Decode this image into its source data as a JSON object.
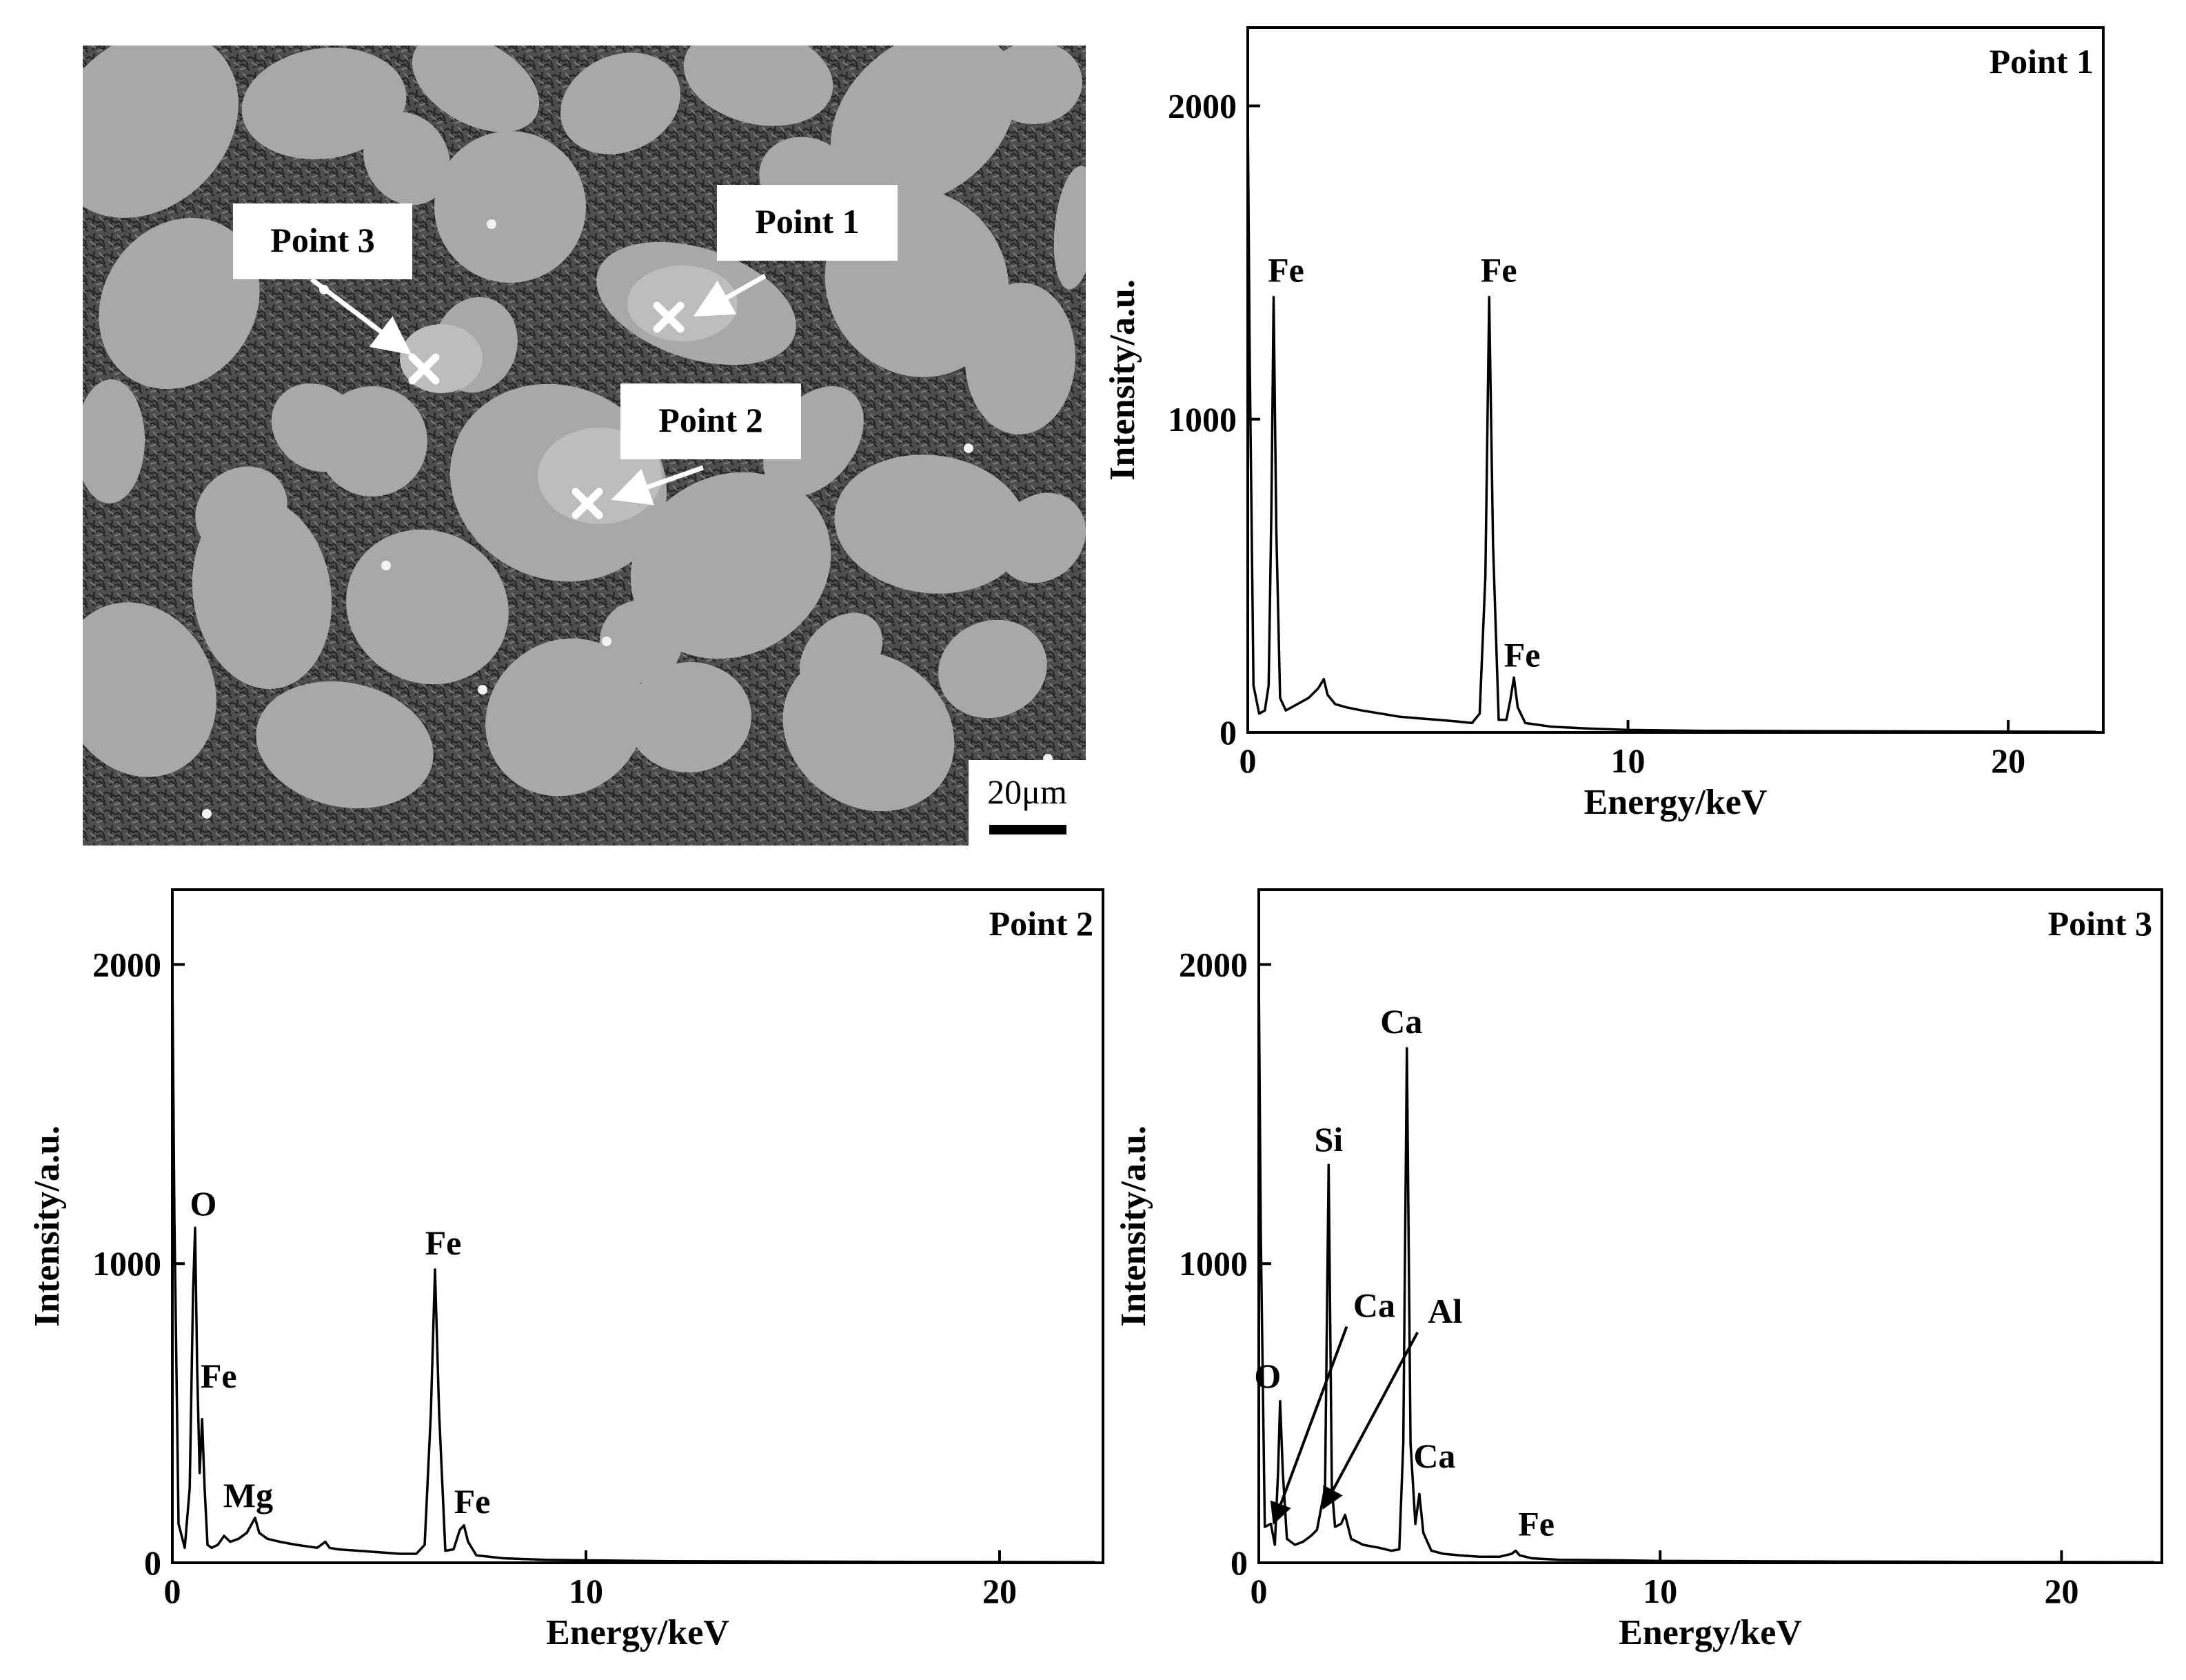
{
  "micrograph": {
    "scale_bar_label": "20μm",
    "point_labels": [
      "Point 3",
      "Point 1",
      "Point 2"
    ]
  },
  "chart_data": [
    {
      "type": "line",
      "panel_label": "Point 1",
      "xlabel": "Energy/keV",
      "ylabel": "Intensity/a.u.",
      "xlim": [
        0,
        22.5
      ],
      "ylim": [
        0,
        2250
      ],
      "xticks": [
        0,
        10,
        20
      ],
      "yticks": [
        0,
        1000,
        2000
      ],
      "x": [
        0,
        0.05,
        0.15,
        0.3,
        0.45,
        0.55,
        0.62,
        0.68,
        0.75,
        0.85,
        1.0,
        1.3,
        1.6,
        1.85,
        2.0,
        2.1,
        2.3,
        2.6,
        3.0,
        3.5,
        4.0,
        4.5,
        5.0,
        5.5,
        5.9,
        6.1,
        6.25,
        6.35,
        6.45,
        6.6,
        6.8,
        6.9,
        7.0,
        7.1,
        7.3,
        8.0,
        9.0,
        10.0,
        12.0,
        15.0,
        18.0,
        22.3
      ],
      "y": [
        1980,
        1200,
        150,
        60,
        70,
        150,
        700,
        1390,
        650,
        110,
        70,
        90,
        110,
        140,
        170,
        120,
        90,
        80,
        70,
        60,
        50,
        45,
        40,
        35,
        30,
        60,
        500,
        1390,
        600,
        40,
        40,
        100,
        175,
        80,
        30,
        18,
        12,
        8,
        5,
        4,
        3,
        2
      ],
      "annotations": [
        {
          "text": "Fe",
          "x": 0.68,
          "y": 1390
        },
        {
          "text": "Fe",
          "x": 6.35,
          "y": 1390
        },
        {
          "text": "Fe",
          "x": 7.0,
          "y": 175
        }
      ]
    },
    {
      "type": "line",
      "panel_label": "Point 2",
      "xlabel": "Energy/keV",
      "ylabel": "Intensity/a.u.",
      "xlim": [
        0,
        22.5
      ],
      "ylim": [
        0,
        2250
      ],
      "xticks": [
        0,
        10,
        20
      ],
      "yticks": [
        0,
        1000,
        2000
      ],
      "x": [
        0,
        0.05,
        0.15,
        0.3,
        0.42,
        0.5,
        0.55,
        0.6,
        0.66,
        0.72,
        0.78,
        0.85,
        0.95,
        1.1,
        1.25,
        1.4,
        1.6,
        1.8,
        2.0,
        2.1,
        2.3,
        2.6,
        3.0,
        3.5,
        3.7,
        3.8,
        4.0,
        4.5,
        5.0,
        5.5,
        5.9,
        6.1,
        6.25,
        6.35,
        6.45,
        6.6,
        6.8,
        6.95,
        7.05,
        7.15,
        7.35,
        8.0,
        9.0,
        10.0,
        12.0,
        15.0,
        18.0,
        22.3
      ],
      "y": [
        1980,
        1150,
        130,
        50,
        250,
        900,
        1120,
        650,
        300,
        480,
        250,
        60,
        50,
        60,
        90,
        70,
        80,
        100,
        150,
        100,
        80,
        70,
        60,
        50,
        70,
        50,
        45,
        40,
        35,
        30,
        30,
        60,
        500,
        980,
        500,
        40,
        45,
        110,
        125,
        70,
        25,
        15,
        10,
        8,
        5,
        4,
        3,
        2
      ],
      "annotations": [
        {
          "text": "O",
          "x": 0.55,
          "y": 1120
        },
        {
          "text": "Fe",
          "x": 0.72,
          "y": 480
        },
        {
          "text": "Mg",
          "x": 2.0,
          "y": 150
        },
        {
          "text": "Fe",
          "x": 6.35,
          "y": 980
        },
        {
          "text": "Fe",
          "x": 7.05,
          "y": 125
        }
      ]
    },
    {
      "type": "line",
      "panel_label": "Point 3",
      "xlabel": "Energy/keV",
      "ylabel": "Intensity/a.u.",
      "xlim": [
        0,
        22.5
      ],
      "ylim": [
        0,
        2250
      ],
      "xticks": [
        0,
        10,
        20
      ],
      "yticks": [
        0,
        1000,
        2000
      ],
      "x": [
        0,
        0.05,
        0.15,
        0.3,
        0.4,
        0.48,
        0.53,
        0.6,
        0.7,
        0.9,
        1.1,
        1.3,
        1.45,
        1.55,
        1.65,
        1.74,
        1.82,
        1.9,
        2.05,
        2.15,
        2.3,
        2.6,
        3.0,
        3.3,
        3.5,
        3.6,
        3.69,
        3.78,
        3.9,
        4.0,
        4.1,
        4.3,
        4.6,
        5.0,
        5.5,
        6.0,
        6.3,
        6.4,
        6.5,
        6.8,
        7.5,
        9.0,
        10.0,
        12.0,
        15.0,
        18.0,
        22.3
      ],
      "y": [
        1960,
        1100,
        120,
        130,
        60,
        300,
        540,
        300,
        80,
        60,
        70,
        90,
        110,
        180,
        250,
        1330,
        250,
        120,
        130,
        160,
        80,
        60,
        50,
        40,
        45,
        400,
        1720,
        400,
        130,
        230,
        100,
        40,
        30,
        25,
        20,
        20,
        30,
        40,
        25,
        15,
        10,
        8,
        6,
        5,
        4,
        3,
        2
      ],
      "annotations": [
        {
          "text": "O",
          "x": 0.53,
          "y": 540
        },
        {
          "text": "Si",
          "x": 1.74,
          "y": 1330
        },
        {
          "text": "Ca",
          "x": 3.69,
          "y": 1720
        },
        {
          "text": "Ca",
          "x": 0.3,
          "y": 130
        },
        {
          "text": "Al",
          "x": 1.55,
          "y": 180
        },
        {
          "text": "Ca",
          "x": 4.0,
          "y": 230
        },
        {
          "text": "Fe",
          "x": 6.4,
          "y": 40
        }
      ]
    }
  ]
}
